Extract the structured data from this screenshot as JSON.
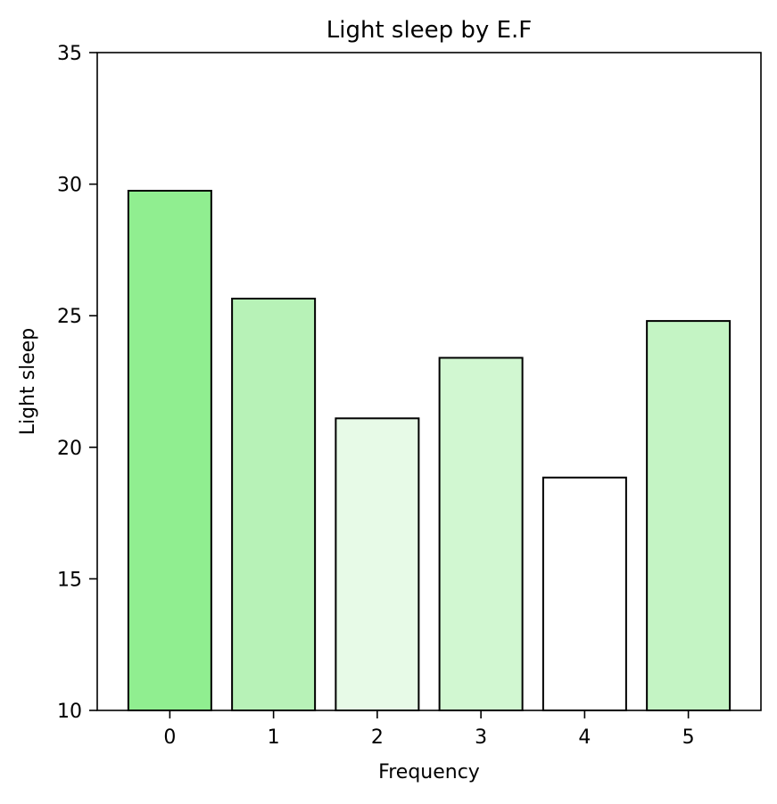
{
  "chart_data": {
    "type": "bar",
    "title": "Light sleep by E.F",
    "xlabel": "Frequency",
    "ylabel": "Light sleep",
    "categories": [
      "0",
      "1",
      "2",
      "3",
      "4",
      "5"
    ],
    "values": [
      29.75,
      25.65,
      21.1,
      23.4,
      18.85,
      24.8
    ],
    "bar_colors": [
      "#90ee90",
      "#b7f2b7",
      "#e7fae7",
      "#d1f7d1",
      "#ffffff",
      "#c4f4c4"
    ],
    "edge_color": "#000000",
    "ylim": [
      10,
      35
    ],
    "yticks": [
      10,
      15,
      20,
      25,
      30,
      35
    ],
    "grid": false,
    "legend": "none"
  }
}
